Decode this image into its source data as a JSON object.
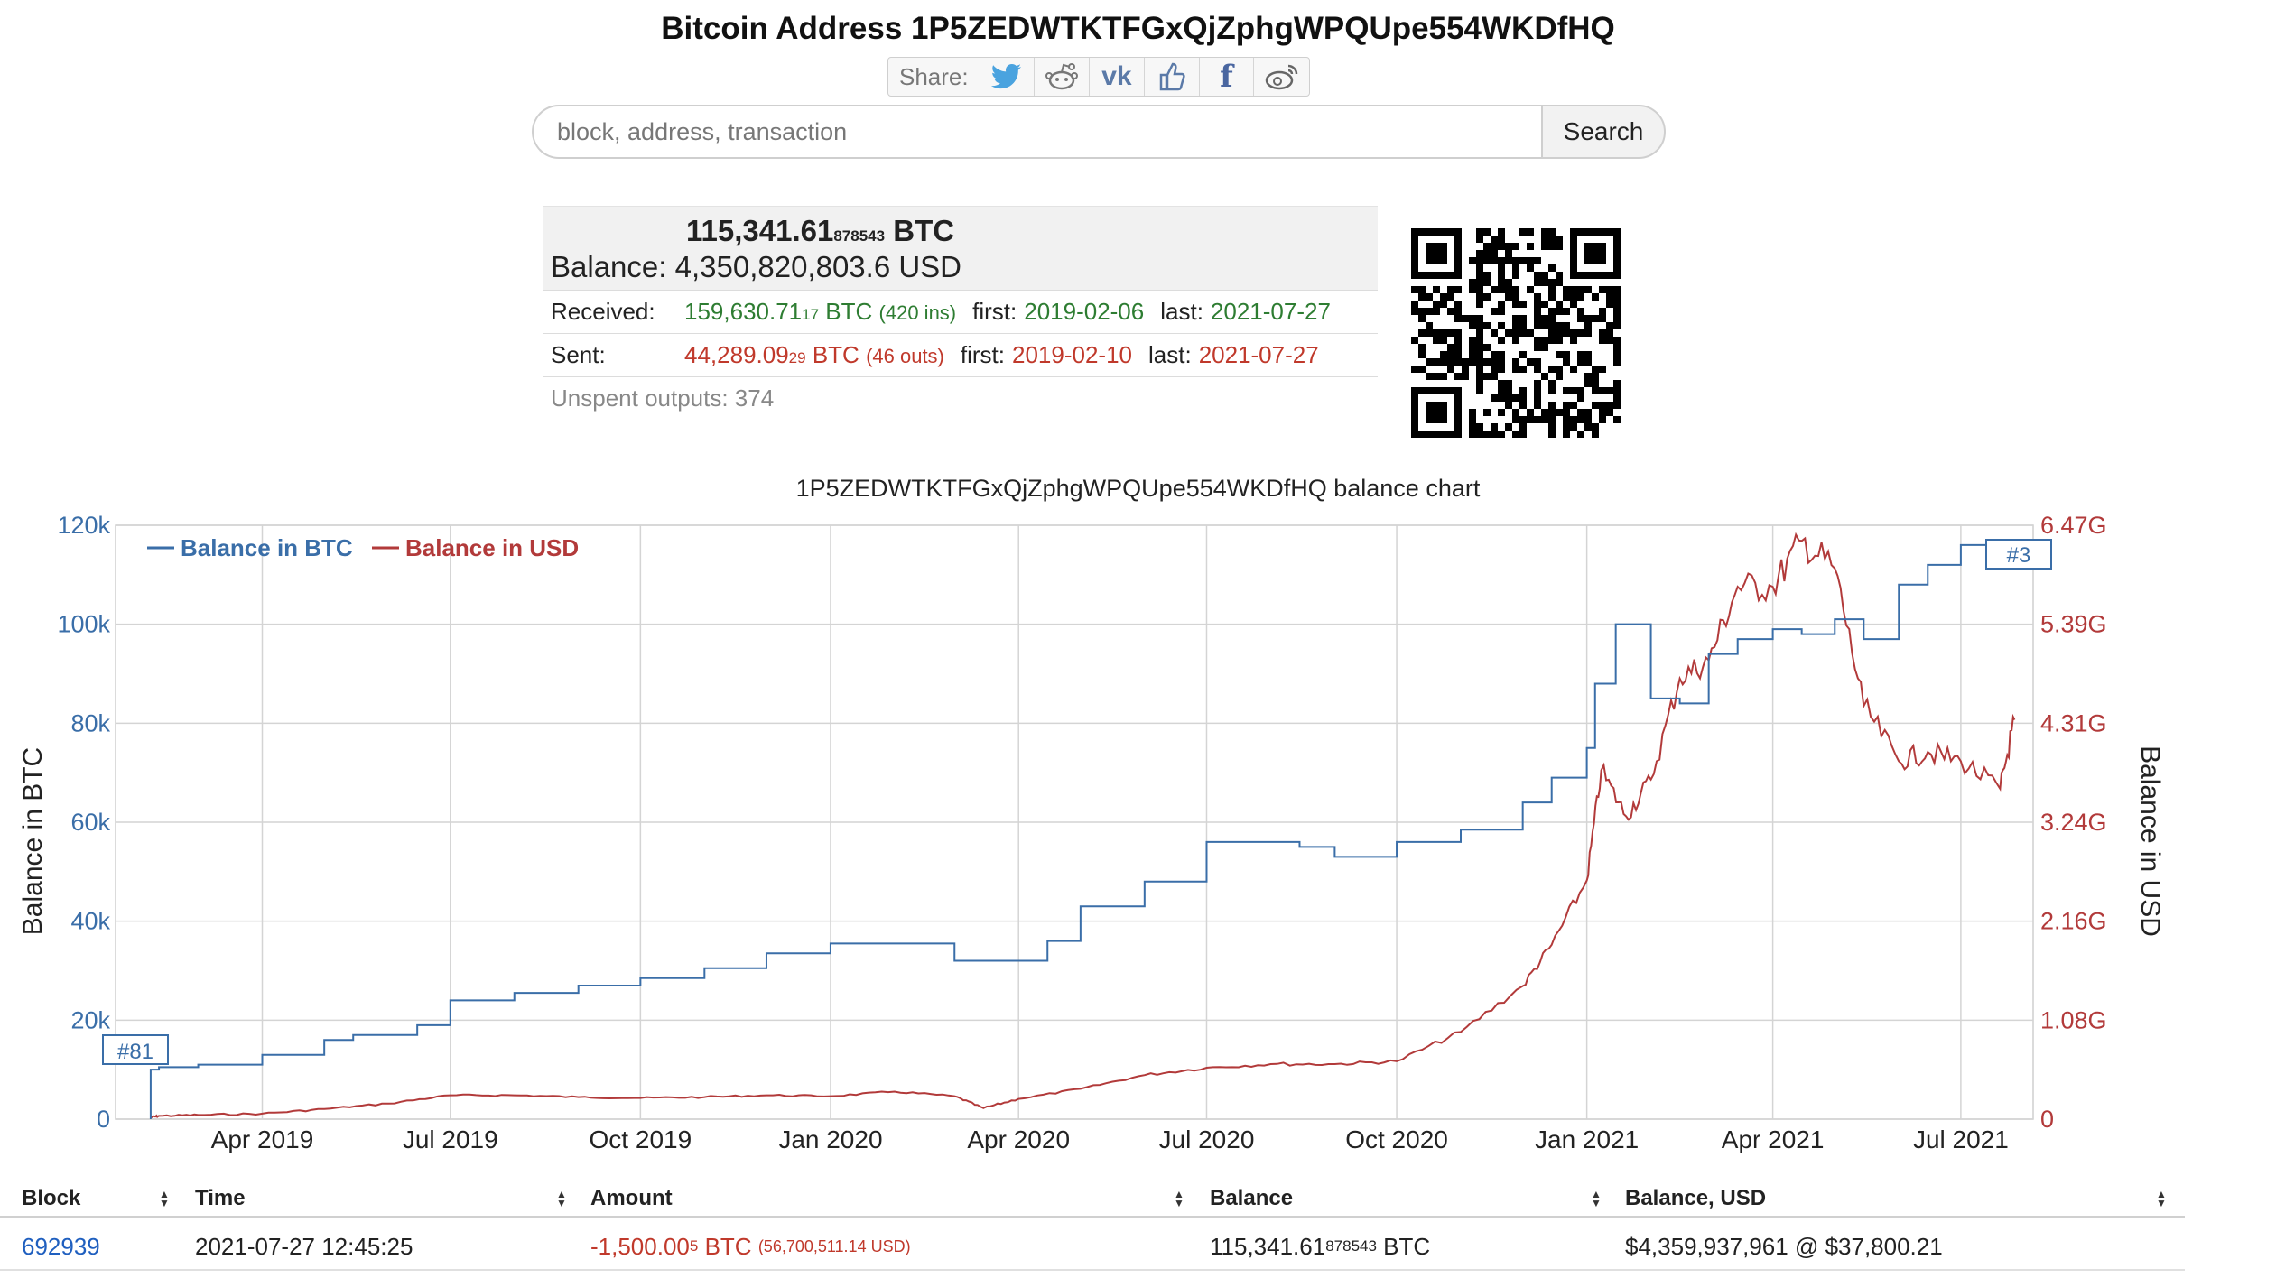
{
  "header": {
    "title": "Bitcoin Address 1P5ZEDWTKTFGxQjZphgWPQUpe554WKDfHQ",
    "share_label": "Share:",
    "share_icons": [
      "twitter-icon",
      "reddit-icon",
      "vk-icon",
      "like-icon",
      "facebook-icon",
      "weibo-icon"
    ]
  },
  "search": {
    "placeholder": "block, address, transaction",
    "button_label": "Search"
  },
  "summary": {
    "btc_main": "115,341.61",
    "btc_small": "878543",
    "btc_unit": "BTC",
    "balance_label": "Balance:",
    "balance_usd": "4,350,820,803.6 USD",
    "received_label": "Received:",
    "received_main": "159,630.71",
    "received_small": "17",
    "received_unit": "BTC",
    "received_ins": "(420 ins)",
    "received_first_label": "first:",
    "received_first": "2019-02-06",
    "received_last_label": "last:",
    "received_last": "2021-07-27",
    "sent_label": "Sent:",
    "sent_main": "44,289.09",
    "sent_small": "29",
    "sent_unit": "BTC",
    "sent_outs": "(46 outs)",
    "sent_first_label": "first:",
    "sent_first": "2019-02-10",
    "sent_last_label": "last:",
    "sent_last": "2021-07-27",
    "unspent": "Unspent outputs: 374"
  },
  "chart_data": {
    "type": "line",
    "title": "1P5ZEDWTKTFGxQjZphgWPQUpe554WKDfHQ balance chart",
    "ylabel": "Balance in BTC",
    "y2label": "Balance in USD",
    "x_tick_labels": [
      "Apr 2019",
      "Jul 2019",
      "Oct 2019",
      "Jan 2020",
      "Apr 2020",
      "Jul 2020",
      "Oct 2020",
      "Jan 2021",
      "Apr 2021",
      "Jul 2021"
    ],
    "y_tick_labels": [
      "0",
      "20k",
      "40k",
      "60k",
      "80k",
      "100k",
      "120k"
    ],
    "y2_tick_labels": [
      "0",
      "1.08G",
      "2.16G",
      "3.24G",
      "4.31G",
      "5.39G",
      "6.47G"
    ],
    "ylim": [
      0,
      120000
    ],
    "y2lim": [
      0,
      6470000000
    ],
    "legend_placement": "top-left",
    "grid": true,
    "colors": {
      "btc": "#3a6ea8",
      "usd": "#b23a3a"
    },
    "annotations": [
      "#81",
      "#3"
    ],
    "series": [
      {
        "name": "Balance in BTC",
        "axis": "left",
        "x": [
          "2019-02-06",
          "2019-02-10",
          "2019-03-01",
          "2019-04-01",
          "2019-05-01",
          "2019-05-15",
          "2019-06-15",
          "2019-07-01",
          "2019-08-01",
          "2019-09-01",
          "2019-10-01",
          "2019-11-01",
          "2019-12-01",
          "2020-01-01",
          "2020-02-01",
          "2020-03-01",
          "2020-03-25",
          "2020-04-15",
          "2020-05-01",
          "2020-06-01",
          "2020-07-01",
          "2020-08-01",
          "2020-08-15",
          "2020-09-01",
          "2020-10-01",
          "2020-11-01",
          "2020-11-15",
          "2020-12-01",
          "2020-12-15",
          "2021-01-01",
          "2021-01-05",
          "2021-01-15",
          "2021-01-20",
          "2021-02-01",
          "2021-02-15",
          "2021-03-01",
          "2021-03-15",
          "2021-04-01",
          "2021-04-15",
          "2021-05-01",
          "2021-05-15",
          "2021-06-01",
          "2021-06-15",
          "2021-07-01",
          "2021-07-27"
        ],
        "y": [
          10000,
          10500,
          11000,
          13000,
          16000,
          17000,
          19000,
          24000,
          25500,
          27000,
          28500,
          30500,
          33500,
          35500,
          35500,
          32000,
          32000,
          36000,
          43000,
          48000,
          56000,
          56000,
          55000,
          53000,
          56000,
          58500,
          58500,
          64000,
          69000,
          75000,
          88000,
          100000,
          100000,
          85000,
          84000,
          94000,
          97000,
          99000,
          98000,
          101000,
          97000,
          108000,
          112000,
          116000,
          115341
        ]
      },
      {
        "name": "Balance in USD",
        "axis": "right",
        "x": [
          "2019-02-06",
          "2019-02-10",
          "2019-03-01",
          "2019-04-01",
          "2019-05-01",
          "2019-06-01",
          "2019-07-01",
          "2019-08-01",
          "2019-09-01",
          "2019-10-01",
          "2019-11-01",
          "2019-12-01",
          "2020-01-01",
          "2020-02-01",
          "2020-03-01",
          "2020-03-15",
          "2020-04-01",
          "2020-05-01",
          "2020-06-01",
          "2020-07-01",
          "2020-08-01",
          "2020-09-01",
          "2020-10-01",
          "2020-11-01",
          "2020-12-01",
          "2020-12-15",
          "2021-01-01",
          "2021-01-08",
          "2021-01-20",
          "2021-02-01",
          "2021-02-15",
          "2021-03-01",
          "2021-03-15",
          "2021-04-01",
          "2021-04-15",
          "2021-05-01",
          "2021-05-15",
          "2021-06-01",
          "2021-06-15",
          "2021-07-01",
          "2021-07-20",
          "2021-07-27"
        ],
        "y": [
          20000000,
          35000000,
          45000000,
          60000000,
          110000000,
          170000000,
          260000000,
          260000000,
          240000000,
          230000000,
          240000000,
          260000000,
          250000000,
          300000000,
          250000000,
          120000000,
          220000000,
          330000000,
          480000000,
          560000000,
          600000000,
          600000000,
          630000000,
          950000000,
          1450000000,
          1900000000,
          2600000000,
          3800000000,
          3300000000,
          3700000000,
          4800000000,
          5000000000,
          5800000000,
          5800000000,
          6300000000,
          6000000000,
          4500000000,
          3900000000,
          4000000000,
          3900000000,
          3600000000,
          4350000000
        ]
      }
    ]
  },
  "table": {
    "headers": [
      "Block",
      "Time",
      "Amount",
      "Balance",
      "Balance, USD"
    ],
    "row": {
      "block": "692939",
      "time": "2021-07-27 12:45:25",
      "amount_main": "-1,500.00",
      "amount_small": "5",
      "amount_unit": "BTC",
      "amount_usd": "(56,700,511.14 USD)",
      "balance_main": "115,341.61",
      "balance_small": "878543",
      "balance_unit": "BTC",
      "balance_usd": "$4,359,937,961 @ $37,800.21"
    }
  }
}
